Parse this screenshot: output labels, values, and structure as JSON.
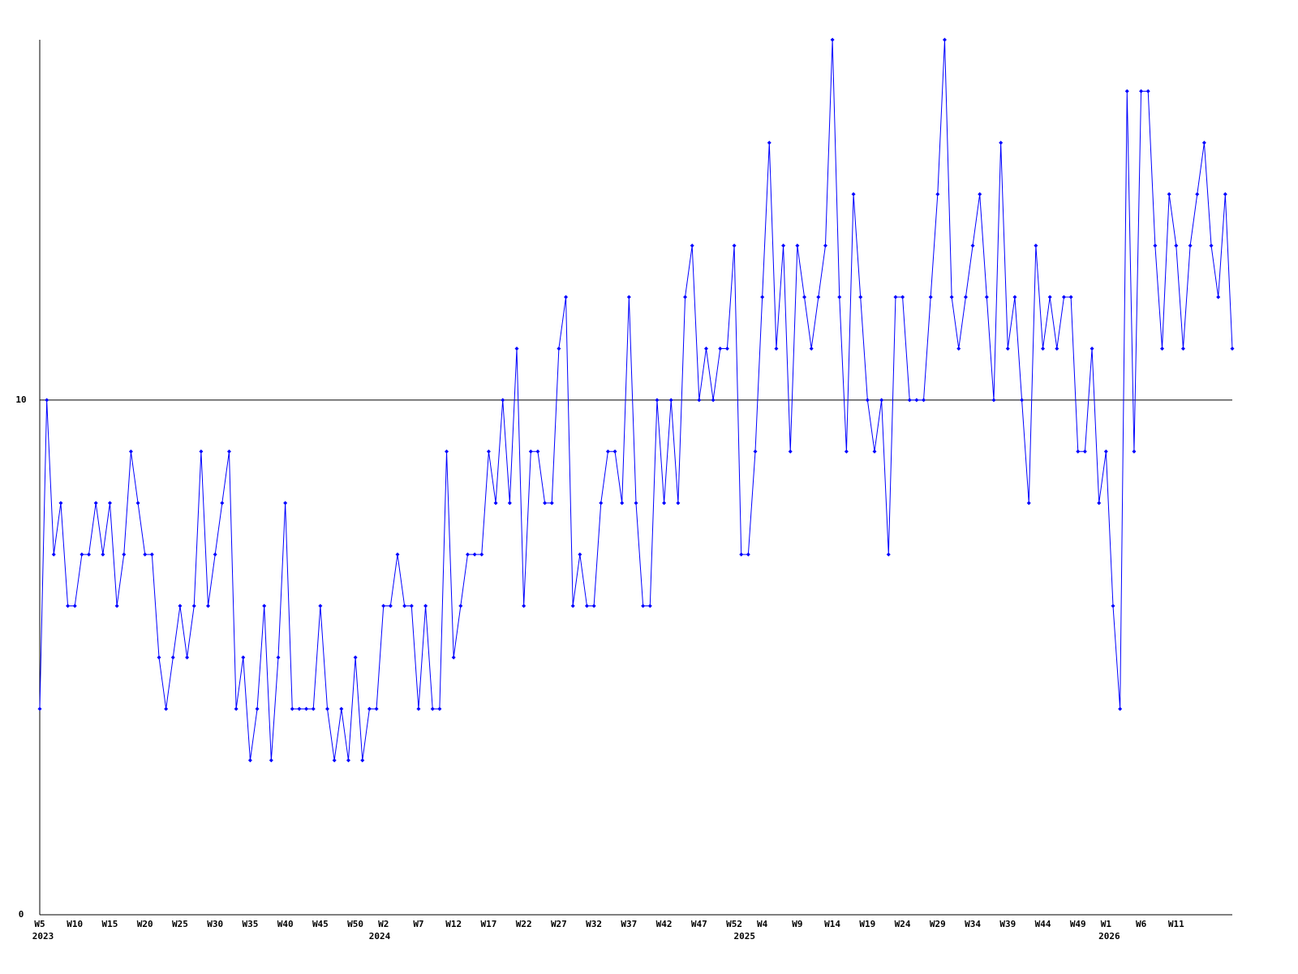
{
  "chart_data": {
    "type": "line",
    "categories": [
      "W5",
      null,
      null,
      null,
      null,
      "W10",
      null,
      null,
      null,
      null,
      "W15",
      null,
      null,
      null,
      null,
      "W20",
      null,
      null,
      null,
      null,
      "W25",
      null,
      null,
      null,
      null,
      "W30",
      null,
      null,
      null,
      null,
      "W35",
      null,
      null,
      null,
      null,
      "W40",
      null,
      null,
      null,
      null,
      "W45",
      null,
      null,
      null,
      null,
      "W50",
      null,
      null,
      null,
      "W2",
      null,
      null,
      null,
      null,
      "W7",
      null,
      null,
      null,
      null,
      "W12",
      null,
      null,
      null,
      null,
      "W17",
      null,
      null,
      null,
      null,
      "W22",
      null,
      null,
      null,
      null,
      "W27",
      null,
      null,
      null,
      null,
      "W32",
      null,
      null,
      null,
      null,
      "W37",
      null,
      null,
      null,
      null,
      "W42",
      null,
      null,
      null,
      null,
      "W47",
      null,
      null,
      null,
      null,
      "W52",
      null,
      null,
      null,
      "W4",
      null,
      null,
      null,
      null,
      "W9",
      null,
      null,
      null,
      null,
      "W14",
      null,
      null,
      null,
      null,
      "W19",
      null,
      null,
      null,
      null,
      "W24",
      null,
      null,
      null,
      null,
      "W29",
      null,
      null,
      null,
      null,
      "W34",
      null,
      null,
      null,
      null,
      "W39",
      null,
      null,
      null,
      null,
      "W44",
      null,
      null,
      null,
      null,
      "W49",
      null,
      null,
      null,
      "W1",
      null,
      null,
      null,
      null,
      "W6",
      null,
      null,
      null,
      null,
      "W11",
      null,
      null,
      null,
      null,
      null,
      null,
      null,
      null
    ],
    "year_labels": [
      {
        "index": 0,
        "label": "2023"
      },
      {
        "index": 48,
        "label": "2024"
      },
      {
        "index": 100,
        "label": "2025"
      },
      {
        "index": 152,
        "label": "2026"
      }
    ],
    "series": [
      {
        "color": "#0000ff",
        "values": [
          4,
          10,
          7,
          8,
          6,
          6,
          7,
          7,
          8,
          7,
          8,
          6,
          7,
          9,
          8,
          7,
          7,
          5,
          4,
          5,
          6,
          5,
          6,
          9,
          6,
          7,
          8,
          9,
          4,
          5,
          3,
          4,
          6,
          3,
          5,
          8,
          4,
          4,
          4,
          4,
          6,
          4,
          3,
          4,
          3,
          5,
          3,
          4,
          4,
          6,
          6,
          7,
          6,
          6,
          4,
          6,
          4,
          4,
          9,
          5,
          6,
          7,
          7,
          7,
          9,
          8,
          10,
          8,
          11,
          6,
          9,
          9,
          8,
          8,
          11,
          12,
          6,
          7,
          6,
          6,
          8,
          9,
          9,
          8,
          12,
          8,
          6,
          6,
          10,
          8,
          10,
          8,
          12,
          13,
          10,
          11,
          10,
          11,
          11,
          13,
          7,
          7,
          9,
          12,
          15,
          11,
          13,
          9,
          13,
          12,
          11,
          12,
          13,
          17,
          12,
          9,
          14,
          12,
          10,
          9,
          10,
          7,
          12,
          12,
          10,
          10,
          10,
          12,
          14,
          17,
          12,
          11,
          12,
          13,
          14,
          12,
          10,
          15,
          11,
          12,
          10,
          8,
          13,
          11,
          12,
          11,
          12,
          12,
          9,
          9,
          11,
          8,
          9,
          6,
          4,
          16,
          9,
          16,
          16,
          13,
          11,
          14,
          13,
          11,
          13,
          14,
          15,
          13,
          12,
          14,
          11
        ]
      }
    ],
    "ylim": [
      0,
      17
    ],
    "yticks": [
      0,
      10
    ],
    "grid": true
  }
}
